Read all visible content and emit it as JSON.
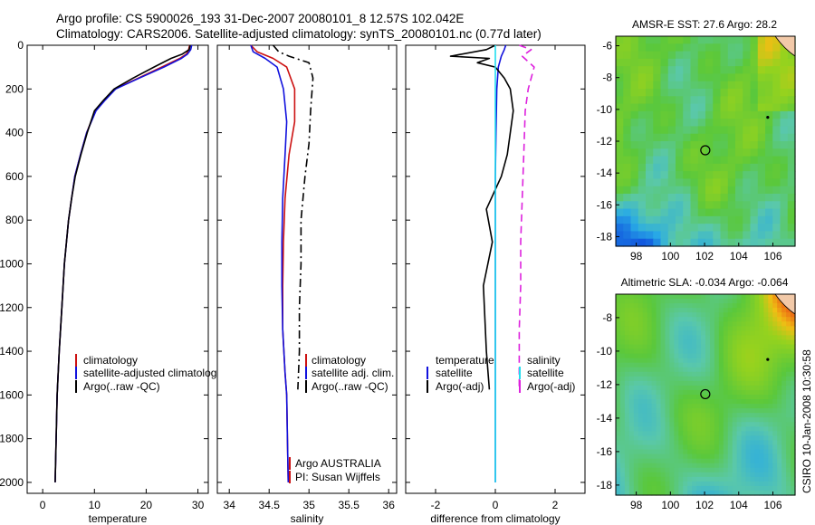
{
  "title": {
    "line1": "Argo profile: CS 5900026_193 31-Dec-2007 20080101_8 12.57S 102.042E",
    "line2": "Climatology: CARS2006. Satellite-adjusted climatology: synTS_20080101.nc (0.77d later)"
  },
  "side_label": "CSIRO 10-Jan-2008 10:30:58",
  "credit": {
    "line1": "Argo AUSTRALIA",
    "line2": "PI: Susan Wijffels"
  },
  "colors": {
    "climatology": "#cc1111",
    "satellite": "#1111dd",
    "argo": "#000000",
    "salinity_clim": "#dd22dd",
    "salinity_sat": "#22ddee"
  },
  "chart_data": [
    {
      "type": "line",
      "id": "temperature",
      "xlabel": "temperature",
      "ylabel": "",
      "xlim": [
        -3,
        32
      ],
      "ylim": [
        2050,
        0
      ],
      "xticks": [
        0,
        10,
        20,
        30
      ],
      "yticks": [
        0,
        200,
        400,
        600,
        800,
        1000,
        1200,
        1400,
        1600,
        1800,
        2000
      ],
      "legend": [
        "climatology",
        "satellite-adjusted climatology",
        "Argo(..raw -QC)"
      ],
      "series": [
        {
          "name": "climatology",
          "x": [
            28.4,
            28.2,
            27.8,
            26.5,
            23,
            18.5,
            14,
            12,
            10.2,
            8.5,
            7.3,
            6.2,
            5.6,
            5.0,
            4.6,
            4.2,
            3.7,
            3.2,
            2.8,
            2.4
          ],
          "y": [
            0,
            20,
            40,
            60,
            100,
            150,
            200,
            250,
            300,
            400,
            500,
            600,
            700,
            800,
            900,
            1000,
            1200,
            1400,
            1600,
            2000
          ]
        },
        {
          "name": "satellite-adjusted climatology",
          "x": [
            28.8,
            28.6,
            28.0,
            26.8,
            23.4,
            18.7,
            14.1,
            12.1,
            10.3,
            8.5,
            7.3,
            6.2,
            5.6,
            5.0,
            4.6,
            4.2,
            3.7,
            3.2,
            2.8,
            2.4
          ],
          "y": [
            0,
            20,
            40,
            60,
            100,
            150,
            200,
            250,
            300,
            400,
            500,
            600,
            700,
            800,
            900,
            1000,
            1200,
            1400,
            1600,
            2000
          ]
        },
        {
          "name": "Argo(..raw -QC)",
          "x": [
            28.5,
            28.3,
            27.0,
            24.8,
            21.5,
            17.5,
            13.8,
            11.8,
            10.0,
            8.6,
            7.4,
            6.3,
            5.6,
            5.0,
            4.6,
            4.2,
            3.7,
            3.2,
            2.8,
            2.4
          ],
          "y": [
            0,
            20,
            40,
            60,
            100,
            150,
            200,
            250,
            300,
            400,
            500,
            600,
            700,
            800,
            900,
            1000,
            1200,
            1400,
            1600,
            2000
          ]
        }
      ]
    },
    {
      "type": "line",
      "id": "salinity",
      "xlabel": "salinity",
      "ylabel": "",
      "xlim": [
        33.85,
        36.1
      ],
      "ylim": [
        2050,
        0
      ],
      "xticks": [
        34,
        34.5,
        35,
        35.5,
        36
      ],
      "legend": [
        "climatology",
        "satellite adj. clim.",
        "Argo(..raw -QC)"
      ],
      "series": [
        {
          "name": "climatology",
          "x": [
            34.27,
            34.35,
            34.55,
            34.72,
            34.82,
            34.82,
            34.75,
            34.7,
            34.68,
            34.67,
            34.67,
            34.7,
            34.72,
            34.73,
            34.74
          ],
          "y": [
            0,
            30,
            60,
            100,
            200,
            350,
            500,
            700,
            900,
            1100,
            1300,
            1500,
            1600,
            1800,
            2000
          ]
        },
        {
          "name": "satellite adj. clim.",
          "x": [
            34.27,
            34.3,
            34.45,
            34.6,
            34.68,
            34.72,
            34.7,
            34.67,
            34.66,
            34.66,
            34.67,
            34.7,
            34.72,
            34.73,
            34.74
          ],
          "y": [
            0,
            30,
            60,
            100,
            200,
            350,
            500,
            700,
            900,
            1100,
            1300,
            1500,
            1600,
            1800,
            2000
          ]
        },
        {
          "name": "Argo(..raw -QC)",
          "x": [
            34.55,
            34.62,
            34.75,
            35.0,
            35.05,
            35.02,
            35.0,
            34.95,
            34.9,
            34.9,
            34.88,
            34.88,
            34.86
          ],
          "y": [
            0,
            30,
            50,
            80,
            150,
            300,
            450,
            600,
            800,
            1000,
            1200,
            1400,
            1575
          ]
        }
      ]
    },
    {
      "type": "line",
      "id": "difference",
      "xlabel": "difference from climatology",
      "ylabel": "",
      "xlim": [
        -3,
        3
      ],
      "ylim": [
        2050,
        0
      ],
      "xticks": [
        -2,
        0,
        2
      ],
      "legend": [
        "temperature",
        "satellite",
        "Argo(-adj)",
        "salinity",
        "satellite",
        "Argo(-adj)"
      ],
      "series": [
        {
          "name": "temperature satellite",
          "x": [
            0.35,
            0.3,
            0.2,
            0.1,
            0.05,
            0.02,
            0.0,
            0.0,
            0.0,
            0.0,
            0.0,
            0.0
          ],
          "y": [
            0,
            20,
            50,
            100,
            200,
            400,
            600,
            800,
            1000,
            1200,
            1600,
            2000
          ]
        },
        {
          "name": "temperature Argo(-adj)",
          "x": [
            0.0,
            -0.3,
            -1.5,
            -0.2,
            -0.6,
            0.0,
            0.3,
            0.5,
            0.6,
            0.5,
            0.4,
            0.2,
            -0.3,
            -0.1,
            -0.4,
            -0.3,
            -0.2
          ],
          "y": [
            0,
            20,
            50,
            60,
            80,
            100,
            150,
            200,
            300,
            400,
            500,
            600,
            750,
            900,
            1100,
            1400,
            1575
          ]
        },
        {
          "name": "salinity satellite",
          "x": [
            0.0,
            0.0,
            0.0,
            0.0,
            0.0,
            0.0,
            0.0,
            0.0
          ],
          "y": [
            0,
            100,
            300,
            600,
            900,
            1200,
            1600,
            2000
          ]
        },
        {
          "name": "salinity Argo(-adj)",
          "x": [
            0.8,
            1.2,
            0.9,
            1.3,
            1.1,
            1.0,
            0.95,
            0.9,
            0.85,
            0.85,
            0.8,
            0.8
          ],
          "y": [
            0,
            20,
            50,
            100,
            200,
            300,
            500,
            700,
            900,
            1100,
            1300,
            1575
          ]
        }
      ]
    },
    {
      "type": "heatmap",
      "id": "sst-map",
      "title": "AMSR-E SST: 27.6 Argo: 28.2",
      "xlim": [
        96.8,
        107.3
      ],
      "ylim": [
        -18.6,
        -5.4
      ],
      "xticks": [
        98,
        100,
        102,
        104,
        106
      ],
      "yticks": [
        -6,
        -8,
        -10,
        -12,
        -14,
        -16,
        -18
      ],
      "profile_location": {
        "x": 102.042,
        "y": -12.57
      }
    },
    {
      "type": "heatmap",
      "id": "sla-map",
      "title": "Altimetric SLA: -0.034 Argo: -0.064",
      "xlim": [
        96.8,
        107.3
      ],
      "ylim": [
        -18.6,
        -6.6
      ],
      "xticks": [
        98,
        100,
        102,
        104,
        106
      ],
      "yticks": [
        -8,
        -10,
        -12,
        -14,
        -16,
        -18
      ],
      "profile_location": {
        "x": 102.042,
        "y": -12.57
      }
    }
  ]
}
